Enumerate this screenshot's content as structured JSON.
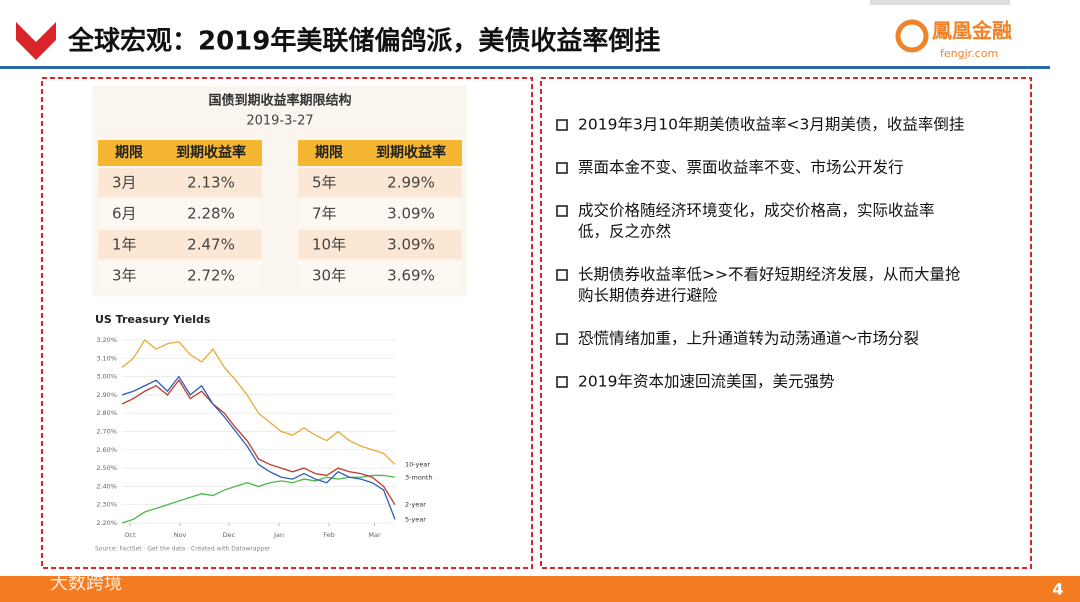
{
  "header": {
    "title": "全球宏观：2019年美联储偏鸽派，美债收益率倒挂",
    "logo": "鳳凰金融",
    "logo_url": "fengjr.com"
  },
  "table": {
    "title": "国债到期收益率期限结构",
    "date": "2019-3-27",
    "columns": [
      "期限",
      "到期收益率"
    ],
    "left_rows": [
      [
        "3月",
        "2.13%"
      ],
      [
        "6月",
        "2.28%"
      ],
      [
        "1年",
        "2.47%"
      ],
      [
        "3年",
        "2.72%"
      ]
    ],
    "right_rows": [
      [
        "5年",
        "2.99%"
      ],
      [
        "7年",
        "3.09%"
      ],
      [
        "10年",
        "3.09%"
      ],
      [
        "30年",
        "3.69%"
      ]
    ]
  },
  "chart_data": {
    "type": "line",
    "title": "US Treasury Yields",
    "source": "Source: FactSet · Get the data · Created with Datawrapper",
    "x": [
      0,
      1,
      2,
      3,
      4,
      5,
      6,
      7,
      8,
      9,
      10,
      11,
      12,
      13,
      14,
      15,
      16,
      17,
      18,
      19,
      20,
      21,
      22,
      23,
      24
    ],
    "xlim": [
      0,
      24
    ],
    "xticks": [
      {
        "value": 0,
        "label": "Oct"
      },
      {
        "value": 4.4,
        "label": "Nov"
      },
      {
        "value": 8.7,
        "label": "Dec"
      },
      {
        "value": 13.1,
        "label": "Jan"
      },
      {
        "value": 17.5,
        "label": "Feb"
      },
      {
        "value": 21.5,
        "label": "Mar"
      }
    ],
    "ylim": [
      2.2,
      3.2
    ],
    "yticks": [
      {
        "value": 2.2,
        "label": "2.20%"
      },
      {
        "value": 2.3,
        "label": "2.30%"
      },
      {
        "value": 2.4,
        "label": "2.40%"
      },
      {
        "value": 2.5,
        "label": "2.50%"
      },
      {
        "value": 2.6,
        "label": "2.60%"
      },
      {
        "value": 2.7,
        "label": "2.70%"
      },
      {
        "value": 2.8,
        "label": "2.80%"
      },
      {
        "value": 2.9,
        "label": "2.90%"
      },
      {
        "value": 3.0,
        "label": "3.00%"
      },
      {
        "value": 3.1,
        "label": "3.10%"
      },
      {
        "value": 3.2,
        "label": "3.20%"
      }
    ],
    "grid": true,
    "series": [
      {
        "name": "3-month",
        "color": "#4cb848",
        "values": [
          2.2,
          2.22,
          2.26,
          2.28,
          2.3,
          2.32,
          2.34,
          2.36,
          2.35,
          2.38,
          2.4,
          2.42,
          2.4,
          2.42,
          2.43,
          2.42,
          2.44,
          2.43,
          2.45,
          2.44,
          2.45,
          2.45,
          2.46,
          2.46,
          2.45
        ]
      },
      {
        "name": "10-year",
        "color": "#e8a93a",
        "values": [
          3.05,
          3.1,
          3.2,
          3.15,
          3.18,
          3.19,
          3.12,
          3.08,
          3.15,
          3.05,
          2.98,
          2.9,
          2.8,
          2.75,
          2.7,
          2.68,
          2.72,
          2.68,
          2.65,
          2.7,
          2.65,
          2.62,
          2.6,
          2.58,
          2.52
        ]
      },
      {
        "name": "2-year",
        "color": "#c0392b",
        "values": [
          2.85,
          2.88,
          2.92,
          2.95,
          2.9,
          2.98,
          2.88,
          2.92,
          2.85,
          2.8,
          2.72,
          2.65,
          2.55,
          2.52,
          2.5,
          2.48,
          2.5,
          2.47,
          2.46,
          2.5,
          2.48,
          2.47,
          2.45,
          2.4,
          2.3
        ]
      },
      {
        "name": "5-year",
        "color": "#2e5fb5",
        "values": [
          2.9,
          2.92,
          2.95,
          2.98,
          2.92,
          3.0,
          2.9,
          2.95,
          2.85,
          2.78,
          2.7,
          2.62,
          2.52,
          2.48,
          2.45,
          2.44,
          2.47,
          2.44,
          2.42,
          2.48,
          2.45,
          2.44,
          2.42,
          2.38,
          2.22
        ]
      }
    ]
  },
  "bullets": [
    [
      "2019年3月10年期美债收益率<3月期美债，收益率倒挂"
    ],
    [
      "票面本金不变、票面收益率不变、市场公开发行"
    ],
    [
      "成交价格随经济环境变化，成交价格高，实际收益率",
      "低，反之亦然"
    ],
    [
      "长期债券收益率低>>不看好短期经济发展，从而大量抢",
      "购长期债券进行避险"
    ],
    [
      "恐慌情绪加重，上升通道转为动荡通道～市场分裂"
    ],
    [
      "2019年资本加速回流美国，美元强势"
    ]
  ],
  "footer": {
    "watermark": "大数跨境",
    "page": "4"
  }
}
